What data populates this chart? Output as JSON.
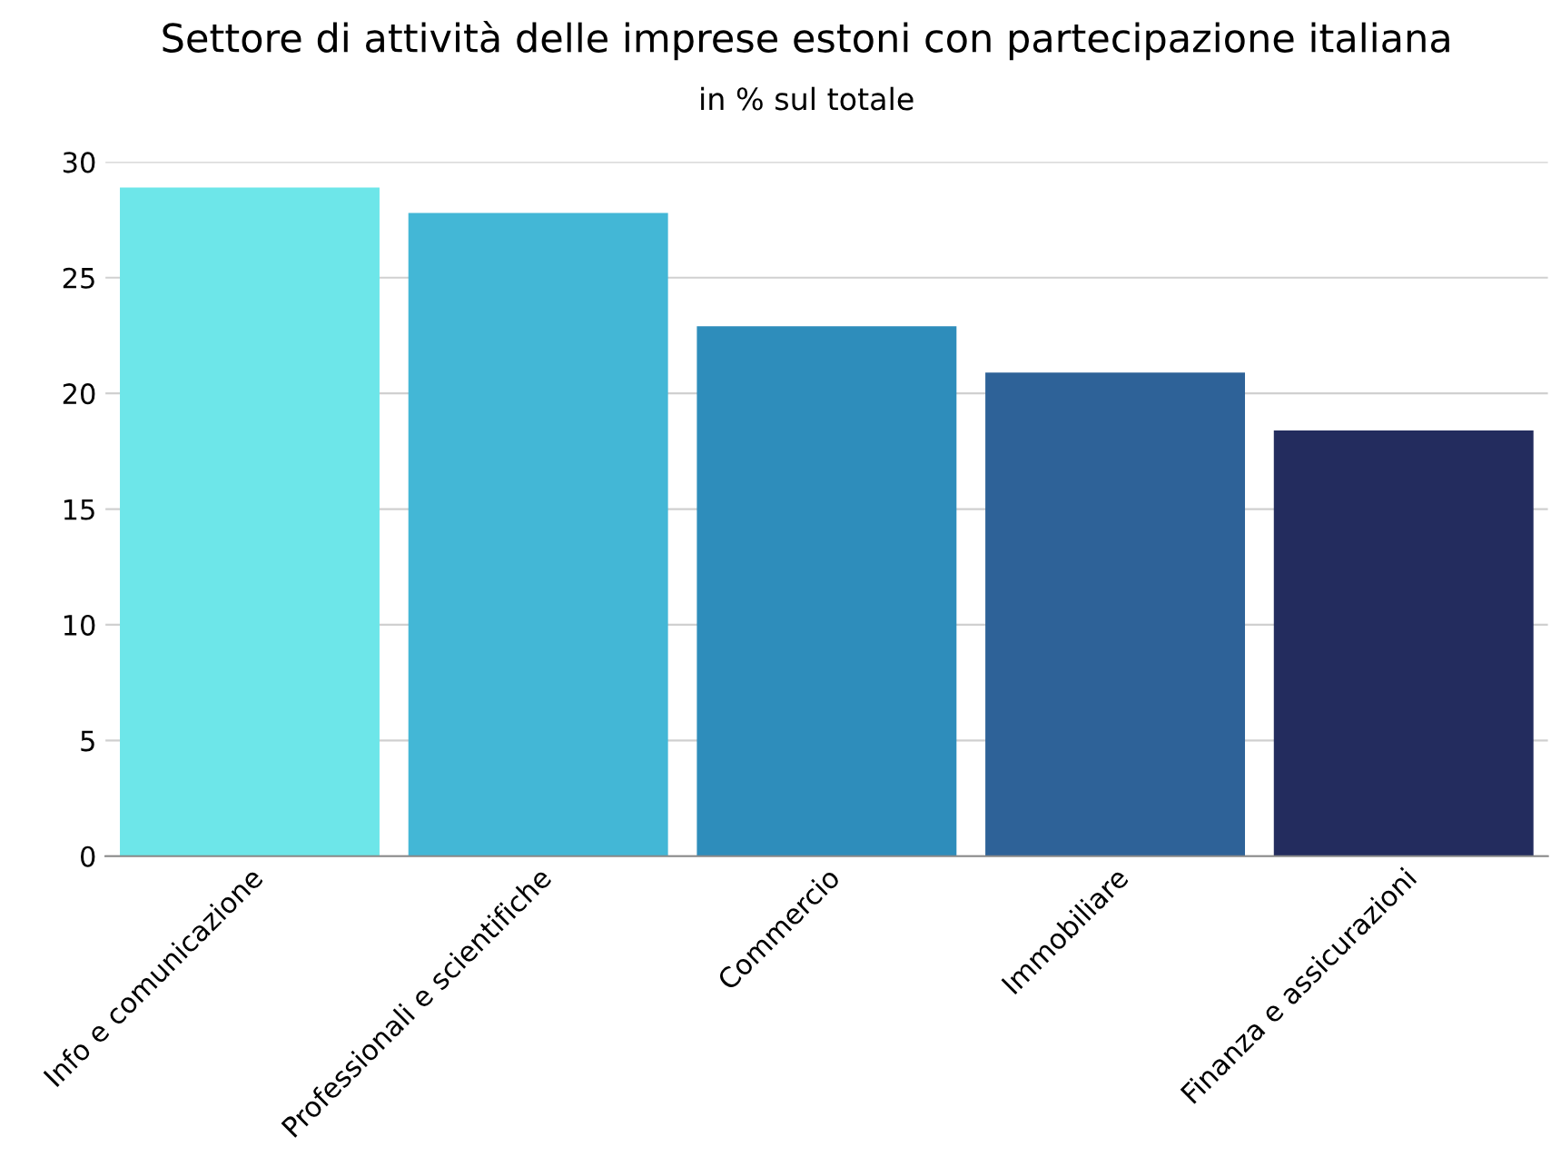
{
  "chart_data": {
    "type": "bar",
    "title": "Settore di attività delle imprese estoni con partecipazione italiana",
    "subtitle": "in % sul totale",
    "categories": [
      "Info e comunicazione",
      "Professionali e scientifiche",
      "Commercio",
      "Immobiliare",
      "Finanza e assicurazioni"
    ],
    "values": [
      28.9,
      27.8,
      22.9,
      20.9,
      18.4
    ],
    "colors": [
      "#6de6e9",
      "#43b7d6",
      "#2e8dbb",
      "#2e6298",
      "#232c5e"
    ],
    "ylim": [
      0,
      30
    ],
    "yticks": [
      0,
      5,
      10,
      15,
      20,
      25,
      30
    ],
    "grid": "y"
  }
}
